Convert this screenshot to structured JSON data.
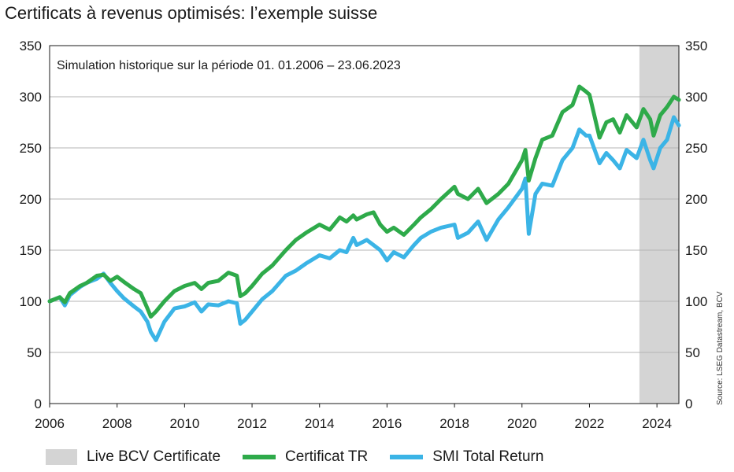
{
  "title": "Certificats à revenus optimisés: l’exemple suisse",
  "colors": {
    "certificat": "#2eaa4a",
    "smi": "#3bb4e6",
    "live_band": "#d4d4d4",
    "grid": "#b5b5b5"
  },
  "chart_data": {
    "type": "line",
    "title": "",
    "annotation": "Simulation historique sur la période 01. 01.2006 – 23.06.2023",
    "source": "Source: LSEG Datastream, BCV",
    "xlim": [
      2006.0,
      2024.65
    ],
    "ylim": [
      0,
      350
    ],
    "x_ticks": [
      "2006",
      "2008",
      "2010",
      "2012",
      "2014",
      "2016",
      "2018",
      "2020",
      "2022",
      "2024"
    ],
    "y_ticks_left": [
      "0",
      "50",
      "100",
      "150",
      "200",
      "250",
      "300",
      "350"
    ],
    "y_ticks_right": [
      "0",
      "50",
      "100",
      "150",
      "200",
      "250",
      "300",
      "350"
    ],
    "grid": true,
    "legend_position": "bottom",
    "shaded_region": {
      "label": "Live BCV Certificate",
      "x_start": 2023.48,
      "x_end": 2024.65
    },
    "series": [
      {
        "name": "Certificat TR",
        "x": [
          2006.0,
          2006.3,
          2006.45,
          2006.6,
          2006.9,
          2007.1,
          2007.4,
          2007.6,
          2007.8,
          2008.0,
          2008.2,
          2008.5,
          2008.7,
          2008.9,
          2009.0,
          2009.15,
          2009.4,
          2009.7,
          2010.0,
          2010.3,
          2010.5,
          2010.7,
          2011.0,
          2011.3,
          2011.55,
          2011.65,
          2011.8,
          2012.0,
          2012.3,
          2012.6,
          2013.0,
          2013.3,
          2013.6,
          2014.0,
          2014.3,
          2014.6,
          2014.8,
          2015.0,
          2015.1,
          2015.4,
          2015.6,
          2015.8,
          2016.0,
          2016.2,
          2016.5,
          2016.8,
          2017.0,
          2017.3,
          2017.6,
          2018.0,
          2018.1,
          2018.4,
          2018.7,
          2018.95,
          2019.3,
          2019.6,
          2020.0,
          2020.1,
          2020.2,
          2020.4,
          2020.6,
          2020.9,
          2021.2,
          2021.5,
          2021.7,
          2021.9,
          2022.0,
          2022.3,
          2022.5,
          2022.7,
          2022.9,
          2023.1,
          2023.4,
          2023.6,
          2023.8,
          2023.9,
          2024.1,
          2024.3,
          2024.5,
          2024.65
        ],
        "values": [
          100,
          104,
          99,
          108,
          115,
          118,
          125,
          126,
          120,
          124,
          119,
          112,
          108,
          93,
          85,
          90,
          100,
          110,
          115,
          118,
          112,
          118,
          120,
          128,
          125,
          105,
          108,
          115,
          127,
          135,
          150,
          160,
          167,
          175,
          170,
          182,
          178,
          184,
          180,
          185,
          187,
          175,
          168,
          172,
          165,
          175,
          182,
          190,
          200,
          212,
          205,
          200,
          210,
          196,
          205,
          215,
          238,
          248,
          218,
          240,
          258,
          262,
          285,
          292,
          310,
          305,
          302,
          260,
          275,
          278,
          265,
          282,
          270,
          288,
          278,
          262,
          282,
          290,
          300,
          297
        ]
      },
      {
        "name": "SMI Total Return",
        "x": [
          2006.0,
          2006.3,
          2006.45,
          2006.6,
          2006.9,
          2007.1,
          2007.4,
          2007.6,
          2007.8,
          2008.0,
          2008.2,
          2008.5,
          2008.7,
          2008.9,
          2009.0,
          2009.15,
          2009.4,
          2009.7,
          2010.0,
          2010.3,
          2010.5,
          2010.7,
          2011.0,
          2011.3,
          2011.55,
          2011.65,
          2011.8,
          2012.0,
          2012.3,
          2012.6,
          2013.0,
          2013.3,
          2013.6,
          2014.0,
          2014.3,
          2014.6,
          2014.8,
          2015.0,
          2015.1,
          2015.4,
          2015.6,
          2015.8,
          2016.0,
          2016.2,
          2016.5,
          2016.8,
          2017.0,
          2017.3,
          2017.6,
          2018.0,
          2018.1,
          2018.4,
          2018.7,
          2018.95,
          2019.3,
          2019.6,
          2020.0,
          2020.1,
          2020.2,
          2020.4,
          2020.6,
          2020.9,
          2021.2,
          2021.5,
          2021.7,
          2021.9,
          2022.0,
          2022.3,
          2022.5,
          2022.7,
          2022.9,
          2023.1,
          2023.4,
          2023.6,
          2023.8,
          2023.9,
          2024.1,
          2024.3,
          2024.5,
          2024.65
        ],
        "values": [
          100,
          104,
          96,
          106,
          114,
          118,
          122,
          127,
          118,
          110,
          103,
          95,
          90,
          80,
          70,
          62,
          80,
          93,
          95,
          99,
          90,
          97,
          96,
          100,
          98,
          78,
          82,
          90,
          102,
          110,
          125,
          130,
          137,
          145,
          142,
          150,
          148,
          162,
          155,
          160,
          155,
          150,
          140,
          148,
          143,
          155,
          162,
          168,
          172,
          175,
          162,
          167,
          178,
          160,
          180,
          192,
          210,
          220,
          166,
          205,
          215,
          213,
          238,
          250,
          268,
          262,
          262,
          235,
          245,
          238,
          230,
          248,
          240,
          258,
          238,
          230,
          250,
          258,
          280,
          272
        ]
      }
    ]
  }
}
